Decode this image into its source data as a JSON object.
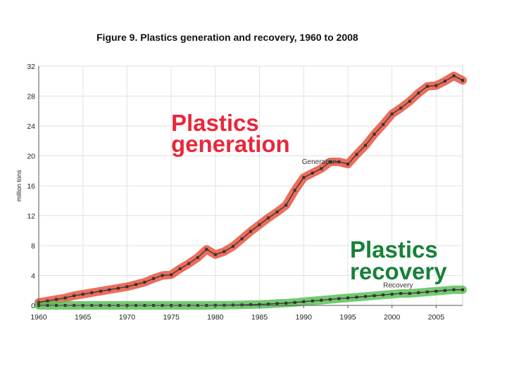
{
  "colors": {
    "generation_highlight": "#e8553f",
    "recovery_highlight": "#5cc158",
    "series_line": "#333333",
    "generation_callout": "#e8283a",
    "recovery_callout": "#18803a",
    "grid": "#e2e2e2"
  },
  "chart_data": {
    "type": "line",
    "title": "Figure 9. Plastics generation and recovery, 1960 to 2008",
    "xlabel": "",
    "ylabel": "million tons",
    "xlim": [
      1960,
      2008
    ],
    "ylim": [
      0,
      32
    ],
    "grid": true,
    "x_ticks": [
      1960,
      1965,
      1970,
      1975,
      1980,
      1985,
      1990,
      1995,
      2000,
      2005
    ],
    "y_ticks": [
      0,
      4,
      8,
      12,
      16,
      20,
      24,
      28,
      32
    ],
    "series": [
      {
        "name": "Generation",
        "callout": [
          "Plastics",
          "generation"
        ],
        "x": [
          1960,
          1961,
          1962,
          1963,
          1964,
          1965,
          1966,
          1967,
          1968,
          1969,
          1970,
          1971,
          1972,
          1973,
          1974,
          1975,
          1976,
          1977,
          1978,
          1979,
          1980,
          1981,
          1982,
          1983,
          1984,
          1985,
          1986,
          1987,
          1988,
          1989,
          1990,
          1991,
          1992,
          1993,
          1994,
          1995,
          1996,
          1997,
          1998,
          1999,
          2000,
          2001,
          2002,
          2003,
          2004,
          2005,
          2006,
          2007,
          2008
        ],
        "values": [
          0.4,
          0.6,
          0.8,
          1.0,
          1.3,
          1.5,
          1.7,
          1.9,
          2.1,
          2.3,
          2.5,
          2.8,
          3.1,
          3.6,
          4.0,
          4.1,
          4.9,
          5.6,
          6.4,
          7.5,
          6.8,
          7.2,
          7.9,
          8.9,
          9.9,
          10.8,
          11.7,
          12.5,
          13.4,
          15.4,
          17.1,
          17.7,
          18.3,
          19.2,
          19.2,
          18.9,
          20.2,
          21.4,
          22.9,
          24.2,
          25.6,
          26.4,
          27.3,
          28.4,
          29.3,
          29.4,
          30.0,
          30.7,
          30.1
        ]
      },
      {
        "name": "Recovery",
        "callout": [
          "Plastics",
          "recovery"
        ],
        "x": [
          1960,
          1961,
          1962,
          1963,
          1964,
          1965,
          1966,
          1967,
          1968,
          1969,
          1970,
          1971,
          1972,
          1973,
          1974,
          1975,
          1976,
          1977,
          1978,
          1979,
          1980,
          1981,
          1982,
          1983,
          1984,
          1985,
          1986,
          1987,
          1988,
          1989,
          1990,
          1991,
          1992,
          1993,
          1994,
          1995,
          1996,
          1997,
          1998,
          1999,
          2000,
          2001,
          2002,
          2003,
          2004,
          2005,
          2006,
          2007,
          2008
        ],
        "values": [
          0.0,
          0.0,
          0.0,
          0.0,
          0.0,
          0.0,
          0.0,
          0.0,
          0.0,
          0.0,
          0.0,
          0.0,
          0.0,
          0.0,
          0.0,
          0.0,
          0.0,
          0.0,
          0.0,
          0.0,
          0.02,
          0.03,
          0.05,
          0.07,
          0.1,
          0.13,
          0.18,
          0.25,
          0.3,
          0.4,
          0.5,
          0.6,
          0.7,
          0.8,
          0.9,
          1.0,
          1.1,
          1.2,
          1.3,
          1.4,
          1.5,
          1.6,
          1.6,
          1.7,
          1.8,
          1.9,
          2.0,
          2.1,
          2.1
        ]
      }
    ]
  }
}
